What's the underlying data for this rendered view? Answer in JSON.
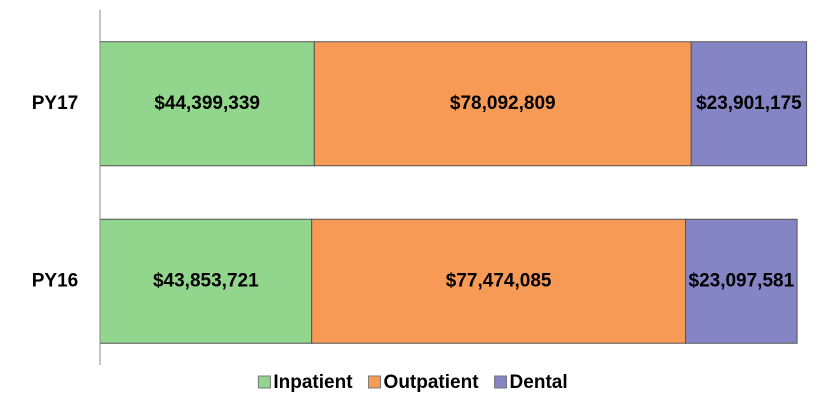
{
  "chart_data": {
    "type": "stacked-barh",
    "categories": [
      "PY17",
      "PY16"
    ],
    "series": [
      {
        "name": "Inpatient",
        "color": "#92d58c",
        "values": [
          44399339,
          43853721
        ],
        "value_labels": [
          "$44,399,339",
          "$43,853,721"
        ]
      },
      {
        "name": "Outpatient",
        "color": "#f79a55",
        "values": [
          78092809,
          77474085
        ],
        "value_labels": [
          "$78,092,809",
          "$77,474,085"
        ]
      },
      {
        "name": "Dental",
        "color": "#8585c6",
        "values": [
          23901175,
          23097581
        ],
        "value_labels": [
          "$23,901,175",
          "$23,097,581"
        ]
      }
    ],
    "xlim": [
      0,
      150000000
    ],
    "legend": "bottom"
  }
}
